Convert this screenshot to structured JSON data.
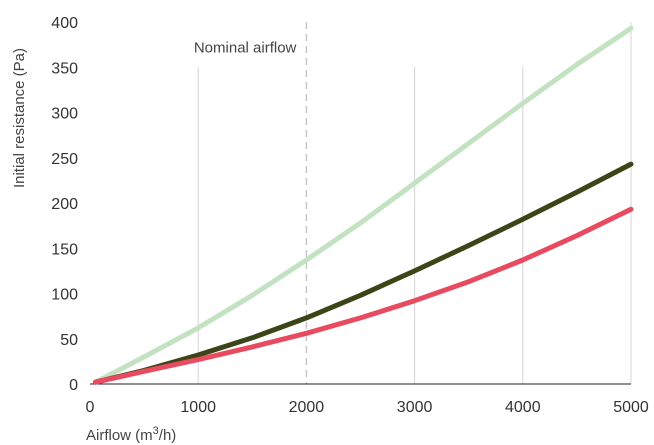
{
  "chart_data": {
    "type": "line",
    "xlabel": "Airflow (m",
    "xlabel_sup": "3",
    "xlabel_end": "/h)",
    "ylabel": "Initial resistance (Pa)",
    "xlim": [
      0,
      5000
    ],
    "ylim": [
      0,
      400
    ],
    "x_ticks": [
      "0",
      "1000",
      "2000",
      "3000",
      "4000",
      "5000"
    ],
    "y_ticks": [
      "0",
      "50",
      "100",
      "150",
      "200",
      "250",
      "300",
      "350",
      "400"
    ],
    "grid": "vertical",
    "annotation": {
      "text": "Nominal airflow",
      "x": 2000
    },
    "series": [
      {
        "color": "#c3e2c2",
        "x": [
          50,
          500,
          1000,
          1500,
          2000,
          2500,
          3000,
          3500,
          4000,
          4500,
          5000
        ],
        "y": [
          2,
          30,
          62,
          98,
          137,
          178,
          222,
          266,
          310,
          353,
          393
        ]
      },
      {
        "color": "#3b4518",
        "x": [
          50,
          500,
          1000,
          1500,
          2000,
          2500,
          3000,
          3500,
          4000,
          4500,
          5000
        ],
        "y": [
          2,
          15,
          32,
          51,
          73,
          98,
          125,
          153,
          182,
          212,
          243
        ]
      },
      {
        "color": "#e84a5f",
        "x": [
          50,
          500,
          1000,
          1500,
          2000,
          2500,
          3000,
          3500,
          4000,
          4500,
          5000
        ],
        "y": [
          2,
          14,
          27,
          41,
          56,
          73,
          92,
          113,
          137,
          164,
          193
        ]
      }
    ]
  }
}
